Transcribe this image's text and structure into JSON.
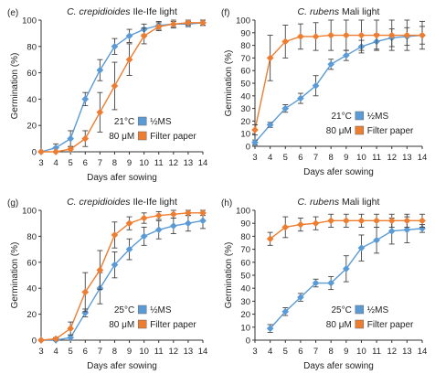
{
  "colors": {
    "ms": "#5b9bd5",
    "filter": "#ed7d31",
    "axis": "#333333",
    "error": "#444444"
  },
  "chart_data": [
    {
      "type": "line",
      "letter": "(e)",
      "title_italic": "C. crepidioides",
      "title_rest": " Ile-Ife light",
      "xlabel": "Days afer sowing",
      "ylabel": "Germination (%)",
      "x": [
        3,
        4,
        5,
        6,
        7,
        8,
        9,
        10,
        11,
        12,
        13,
        14
      ],
      "xlim": [
        3,
        14
      ],
      "ylim": [
        0,
        100
      ],
      "yticks": [
        0,
        20,
        40,
        60,
        80,
        100
      ],
      "temperature": "21°C",
      "concentration": "80 μM",
      "series": [
        {
          "name": "½MS",
          "values": [
            0,
            3,
            10,
            40,
            62,
            80,
            88,
            93,
            96,
            97,
            97,
            98
          ],
          "errors": [
            0,
            3,
            6,
            5,
            8,
            6,
            5,
            4,
            3,
            2,
            2,
            2
          ]
        },
        {
          "name": "Filter paper",
          "values": [
            0,
            0,
            2,
            10,
            30,
            50,
            70,
            88,
            95,
            97,
            98,
            98
          ],
          "errors": [
            0,
            0,
            2,
            6,
            15,
            18,
            12,
            6,
            3,
            3,
            2,
            2
          ]
        }
      ]
    },
    {
      "type": "line",
      "letter": "(f)",
      "title_italic": "C. rubens",
      "title_rest": " Mali light",
      "xlabel": "Days afer sowing",
      "ylabel": "Germination (%)",
      "x": [
        3,
        4,
        5,
        6,
        7,
        8,
        9,
        10,
        11,
        12,
        13,
        14
      ],
      "xlim": [
        3,
        14
      ],
      "ylim": [
        0,
        100
      ],
      "yticks": [
        0,
        10,
        20,
        30,
        40,
        50,
        60,
        70,
        80,
        90,
        100
      ],
      "temperature": "21°C",
      "concentration": "80 μM",
      "series": [
        {
          "name": "½MS",
          "values": [
            3,
            17,
            30,
            38,
            48,
            65,
            72,
            79,
            83,
            86,
            87,
            88
          ],
          "errors": [
            2,
            2,
            3,
            4,
            8,
            4,
            4,
            5,
            6,
            7,
            7,
            7
          ]
        },
        {
          "name": "Filter paper",
          "values": [
            13,
            70,
            83,
            87,
            87,
            88,
            88,
            88,
            88,
            88,
            88,
            88
          ],
          "errors": [
            4,
            18,
            13,
            10,
            11,
            12,
            12,
            12,
            12,
            12,
            12,
            11
          ]
        }
      ]
    },
    {
      "type": "line",
      "letter": "(g)",
      "title_italic": "C. crepidioides",
      "title_rest": " Ile-Ife light",
      "xlabel": "Days afer sowing",
      "ylabel": "Germination (%)",
      "x": [
        3,
        4,
        5,
        6,
        7,
        8,
        9,
        10,
        11,
        12,
        13,
        14
      ],
      "xlim": [
        3,
        14
      ],
      "ylim": [
        0,
        100
      ],
      "yticks": [
        0,
        20,
        40,
        60,
        80,
        100
      ],
      "temperature": "25°C",
      "concentration": "80 μM",
      "series": [
        {
          "name": "½MS",
          "values": [
            0,
            0,
            2,
            21,
            40,
            58,
            70,
            80,
            85,
            88,
            90,
            92
          ],
          "errors": [
            0,
            0,
            2,
            3,
            12,
            10,
            8,
            7,
            7,
            6,
            6,
            6
          ]
        },
        {
          "name": "Filter paper",
          "values": [
            0,
            1,
            9,
            37,
            54,
            81,
            90,
            94,
            96,
            97,
            98,
            98
          ],
          "errors": [
            0,
            1,
            5,
            15,
            15,
            10,
            5,
            4,
            3,
            3,
            2,
            2
          ]
        }
      ]
    },
    {
      "type": "line",
      "letter": "(h)",
      "title_italic": "C. rubens",
      "title_rest": " Mali light",
      "xlabel": "Days afer sowing",
      "ylabel": "Germination (%)",
      "x": [
        4,
        5,
        6,
        7,
        8,
        9,
        10,
        11,
        12,
        13,
        14
      ],
      "xlim": [
        3,
        14
      ],
      "ylim": [
        0,
        100
      ],
      "yticks": [
        0,
        10,
        20,
        30,
        40,
        50,
        60,
        70,
        80,
        90,
        100
      ],
      "temperature": "25°C",
      "concentration": "80 μM",
      "series": [
        {
          "name": "½MS",
          "values": [
            9,
            22,
            33,
            44,
            44,
            55,
            71,
            77,
            84,
            85,
            86
          ],
          "errors": [
            3,
            3,
            3,
            3,
            5,
            10,
            10,
            10,
            10,
            10,
            3
          ]
        },
        {
          "name": "Filter paper",
          "values": [
            78,
            87,
            89,
            90,
            92,
            92,
            92,
            92,
            92,
            92,
            92
          ],
          "errors": [
            5,
            8,
            5,
            5,
            5,
            5,
            5,
            5,
            5,
            5,
            5
          ]
        }
      ]
    }
  ]
}
